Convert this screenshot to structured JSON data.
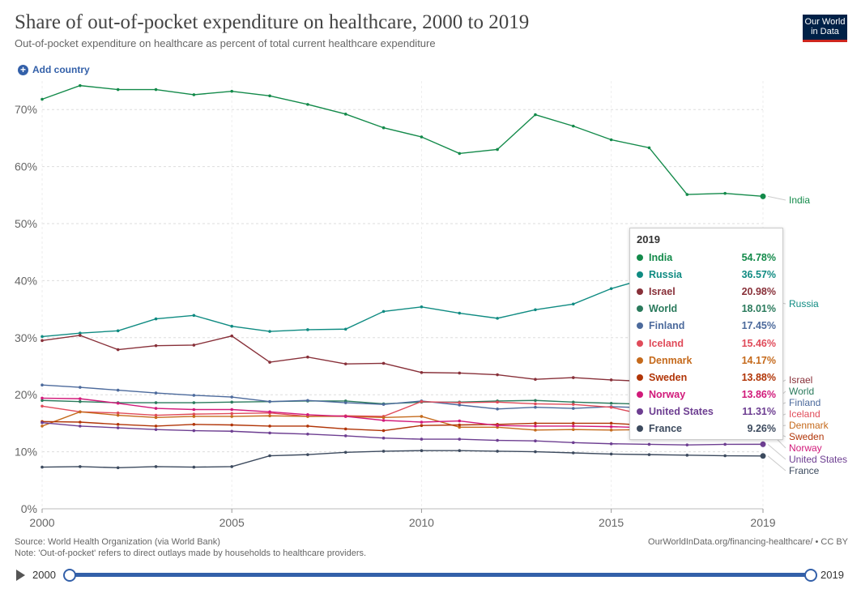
{
  "header": {
    "title": "Share of out-of-pocket expenditure on healthcare, 2000 to 2019",
    "subtitle": "Out-of-pocket expenditure on healthcare as percent of total current healthcare expenditure",
    "logo_line1": "Our World",
    "logo_line2": "in Data",
    "add_country_label": "Add country"
  },
  "chart_data": {
    "type": "line",
    "title": "Share of out-of-pocket expenditure on healthcare, 2000 to 2019",
    "xlabel": "",
    "ylabel": "",
    "xlim": [
      2000,
      2019
    ],
    "ylim": [
      0,
      75
    ],
    "x_ticks": [
      2000,
      2005,
      2010,
      2015,
      2019
    ],
    "y_ticks": [
      0,
      10,
      20,
      30,
      40,
      50,
      60,
      70
    ],
    "y_tick_labels": [
      "0%",
      "10%",
      "20%",
      "30%",
      "40%",
      "50%",
      "60%",
      "70%"
    ],
    "grid": true,
    "x": [
      2000,
      2001,
      2002,
      2003,
      2004,
      2005,
      2006,
      2007,
      2008,
      2009,
      2010,
      2011,
      2012,
      2013,
      2014,
      2015,
      2016,
      2017,
      2018,
      2019
    ],
    "series": [
      {
        "name": "India",
        "color": "#138a4a",
        "values": [
          71.8,
          74.2,
          73.5,
          73.5,
          72.6,
          73.2,
          72.4,
          70.9,
          69.2,
          66.8,
          65.2,
          62.3,
          63.0,
          69.1,
          67.1,
          64.7,
          63.3,
          55.1,
          55.3,
          54.78
        ]
      },
      {
        "name": "Russia",
        "color": "#0f8b82",
        "values": [
          30.2,
          30.8,
          31.2,
          33.3,
          33.9,
          32.0,
          31.1,
          31.4,
          31.5,
          34.6,
          35.4,
          34.3,
          33.4,
          34.9,
          35.9,
          38.6,
          40.5,
          40.0,
          38.0,
          36.57
        ]
      },
      {
        "name": "Israel",
        "color": "#883039",
        "values": [
          29.5,
          30.4,
          27.9,
          28.6,
          28.7,
          30.3,
          25.7,
          26.6,
          25.4,
          25.5,
          23.9,
          23.8,
          23.5,
          22.7,
          23.0,
          22.6,
          22.3,
          21.8,
          21.4,
          20.98
        ]
      },
      {
        "name": "World",
        "color": "#2a7a5c",
        "values": [
          19.0,
          18.8,
          18.6,
          18.6,
          18.6,
          18.7,
          18.8,
          18.9,
          18.9,
          18.4,
          18.7,
          18.7,
          18.9,
          19.0,
          18.7,
          18.5,
          18.3,
          18.2,
          18.1,
          18.01
        ]
      },
      {
        "name": "Finland",
        "color": "#4c6a9c",
        "values": [
          21.7,
          21.3,
          20.8,
          20.3,
          19.9,
          19.6,
          18.8,
          19.0,
          18.6,
          18.3,
          18.9,
          18.2,
          17.5,
          17.8,
          17.6,
          17.9,
          17.7,
          17.6,
          17.5,
          17.45
        ]
      },
      {
        "name": "Iceland",
        "color": "#e04b5a",
        "values": [
          18.0,
          17.0,
          16.8,
          16.4,
          16.6,
          16.7,
          16.8,
          16.2,
          16.3,
          16.2,
          18.8,
          18.6,
          18.7,
          18.4,
          18.3,
          17.8,
          16.3,
          16.2,
          16.0,
          15.46
        ]
      },
      {
        "name": "Denmark",
        "color": "#c56a1c",
        "values": [
          14.5,
          17.0,
          16.4,
          16.0,
          16.2,
          16.2,
          16.3,
          16.2,
          16.2,
          16.0,
          16.2,
          14.3,
          14.3,
          13.8,
          13.9,
          13.8,
          13.9,
          14.0,
          14.1,
          14.17
        ]
      },
      {
        "name": "Sweden",
        "color": "#b13507",
        "values": [
          15.3,
          15.2,
          14.8,
          14.5,
          14.8,
          14.7,
          14.5,
          14.5,
          14.0,
          13.7,
          14.6,
          14.7,
          14.8,
          15.0,
          15.0,
          15.0,
          14.6,
          14.3,
          14.0,
          13.88
        ]
      },
      {
        "name": "Norway",
        "color": "#d11a7a",
        "values": [
          19.4,
          19.3,
          18.5,
          17.6,
          17.4,
          17.4,
          17.0,
          16.5,
          16.2,
          15.5,
          15.2,
          15.4,
          14.6,
          14.5,
          14.5,
          14.4,
          14.2,
          14.1,
          13.9,
          13.86
        ]
      },
      {
        "name": "United States",
        "color": "#6d3e91",
        "values": [
          15.1,
          14.5,
          14.2,
          13.9,
          13.7,
          13.6,
          13.3,
          13.1,
          12.8,
          12.4,
          12.2,
          12.2,
          12.0,
          11.9,
          11.6,
          11.4,
          11.3,
          11.2,
          11.3,
          11.31
        ]
      },
      {
        "name": "France",
        "color": "#3c4a5e",
        "values": [
          7.3,
          7.4,
          7.2,
          7.4,
          7.3,
          7.4,
          9.3,
          9.5,
          9.9,
          10.1,
          10.2,
          10.2,
          10.1,
          10.0,
          9.8,
          9.6,
          9.5,
          9.4,
          9.3,
          9.26
        ]
      }
    ]
  },
  "tooltip": {
    "year": "2019",
    "rows": [
      {
        "name": "India",
        "value": "54.78%",
        "color": "#138a4a"
      },
      {
        "name": "Russia",
        "value": "36.57%",
        "color": "#0f8b82"
      },
      {
        "name": "Israel",
        "value": "20.98%",
        "color": "#883039"
      },
      {
        "name": "World",
        "value": "18.01%",
        "color": "#2a7a5c"
      },
      {
        "name": "Finland",
        "value": "17.45%",
        "color": "#4c6a9c"
      },
      {
        "name": "Iceland",
        "value": "15.46%",
        "color": "#e04b5a"
      },
      {
        "name": "Denmark",
        "value": "14.17%",
        "color": "#c56a1c"
      },
      {
        "name": "Sweden",
        "value": "13.88%",
        "color": "#b13507"
      },
      {
        "name": "Norway",
        "value": "13.86%",
        "color": "#d11a7a"
      },
      {
        "name": "United States",
        "value": "11.31%",
        "color": "#6d3e91"
      },
      {
        "name": "France",
        "value": "9.26%",
        "color": "#3c4a5e"
      }
    ]
  },
  "footer": {
    "source": "Source: World Health Organization (via World Bank)",
    "note": "Note: 'Out-of-pocket' refers to direct outlays made by households to healthcare providers.",
    "link": "OurWorldInData.org/financing-healthcare/ • CC BY"
  },
  "timeline": {
    "start_label": "2000",
    "end_label": "2019"
  }
}
